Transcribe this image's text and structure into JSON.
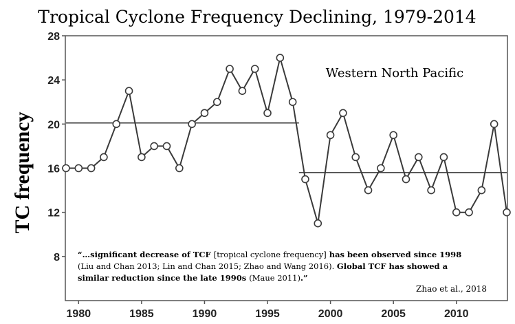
{
  "chart_data": {
    "type": "line",
    "title": "Tropical Cyclone Frequency Declining, 1979-2014",
    "ylabel": "TC frequency",
    "xlabel": "",
    "xlim": [
      1979,
      2014
    ],
    "ylim": [
      4,
      28
    ],
    "yticks": [
      8,
      12,
      16,
      20,
      24,
      28
    ],
    "xticks": [
      1980,
      1985,
      1990,
      1995,
      2000,
      2005,
      2010
    ],
    "grid": false,
    "region_label": "Western North Pacific",
    "x": [
      1979,
      1980,
      1981,
      1982,
      1983,
      1984,
      1985,
      1986,
      1987,
      1988,
      1989,
      1990,
      1991,
      1992,
      1993,
      1994,
      1995,
      1996,
      1997,
      1998,
      1999,
      2000,
      2001,
      2002,
      2003,
      2004,
      2005,
      2006,
      2007,
      2008,
      2009,
      2010,
      2011,
      2012,
      2013,
      2014
    ],
    "series": [
      {
        "values": [
          16,
          16,
          16,
          17,
          20,
          23,
          17,
          18,
          18,
          16,
          20,
          21,
          22,
          25,
          23,
          25,
          21,
          26,
          22,
          15,
          11,
          19,
          21,
          17,
          14,
          16,
          19,
          15,
          17,
          14,
          17,
          12,
          12,
          14,
          20,
          12
        ]
      }
    ],
    "mean_lines": [
      {
        "x_start": 1979,
        "x_end": 1997.5,
        "y": 20.1
      },
      {
        "x_start": 1997.5,
        "x_end": 2014,
        "y": 15.6
      }
    ],
    "annotation": {
      "lines": [
        [
          {
            "text": "“…significant decrease of TCF ",
            "bold": true
          },
          {
            "text": "[tropical cyclone frequency]",
            "bold": false
          },
          {
            "text": " has been observed since 1998",
            "bold": true
          }
        ],
        [
          {
            "text": "(Liu and Chan 2013; Lin and Chan 2015; Zhao and Wang 2016). ",
            "bold": false
          },
          {
            "text": "Global TCF has showed a",
            "bold": true
          }
        ],
        [
          {
            "text": "similar reduction since the late 1990s ",
            "bold": true
          },
          {
            "text": "(Maue 2011)",
            "bold": false
          },
          {
            "text": ".”",
            "bold": true
          }
        ]
      ],
      "credit": "Zhao et al., 2018"
    }
  }
}
